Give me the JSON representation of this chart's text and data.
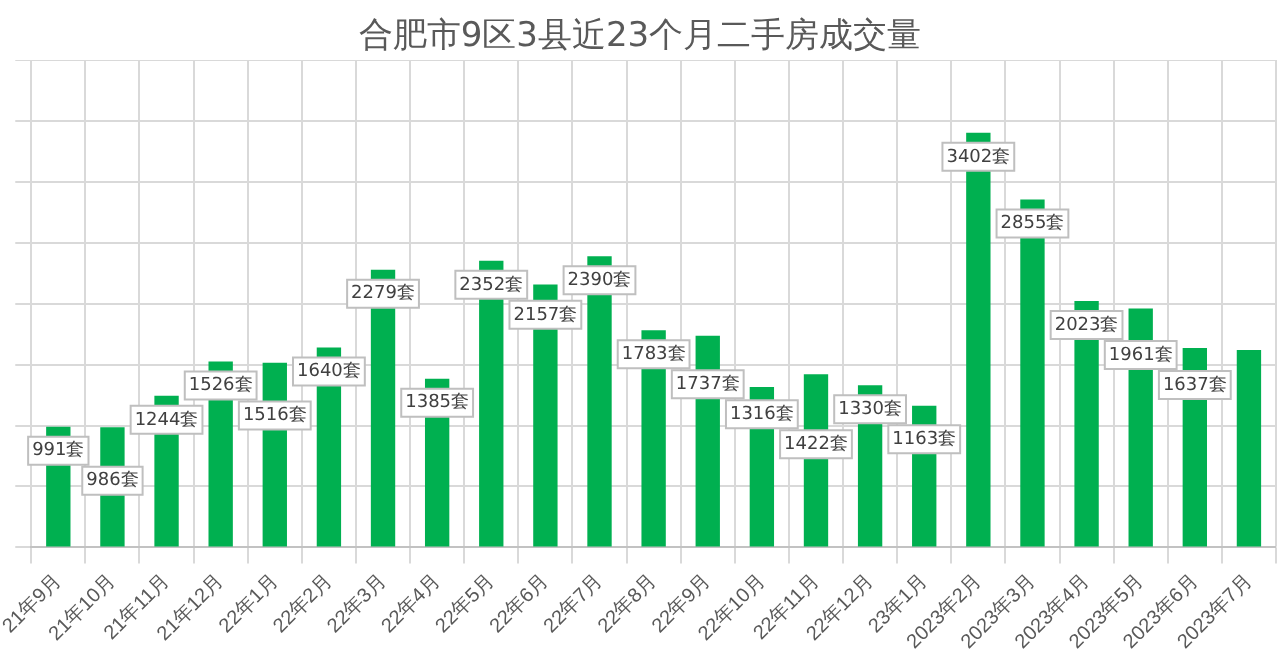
{
  "chart_data": {
    "type": "bar",
    "title": "合肥市9区3县近23个月二手房成交量",
    "categories": [
      "21年9月",
      "21年10月",
      "21年11月",
      "21年12月",
      "22年1月",
      "22年2月",
      "22年3月",
      "22年4月",
      "22年5月",
      "22年6月",
      "22年7月",
      "22年8月",
      "22年9月",
      "22年10月",
      "22年11月",
      "22年12月",
      "23年1月",
      "2023年2月",
      "2023年3月",
      "2023年4月",
      "2023年5月",
      "2023年6月",
      "2023年7月"
    ],
    "values": [
      991,
      986,
      1244,
      1526,
      1516,
      1640,
      2279,
      1385,
      2352,
      2157,
      2390,
      1783,
      1737,
      1316,
      1422,
      1330,
      1163,
      3402,
      2855,
      2023,
      1961,
      1637,
      1620
    ],
    "value_labels": [
      "991套",
      "986套",
      "1244套",
      "1526套",
      "1516套",
      "1640套",
      "2279套",
      "1385套",
      "2352套",
      "2157套",
      "2390套",
      "1783套",
      "1737套",
      "1316套",
      "1422套",
      "1330套",
      "1163套",
      "3402套",
      "2855套",
      "2023套",
      "1961套",
      "1637套",
      null
    ],
    "color": "#00b050",
    "ylim": [
      0,
      4000
    ],
    "yticks": [
      0,
      500,
      1000,
      1500,
      2000,
      2500,
      3000,
      3500,
      4000
    ],
    "tick_labels": "x",
    "grid": true
  }
}
